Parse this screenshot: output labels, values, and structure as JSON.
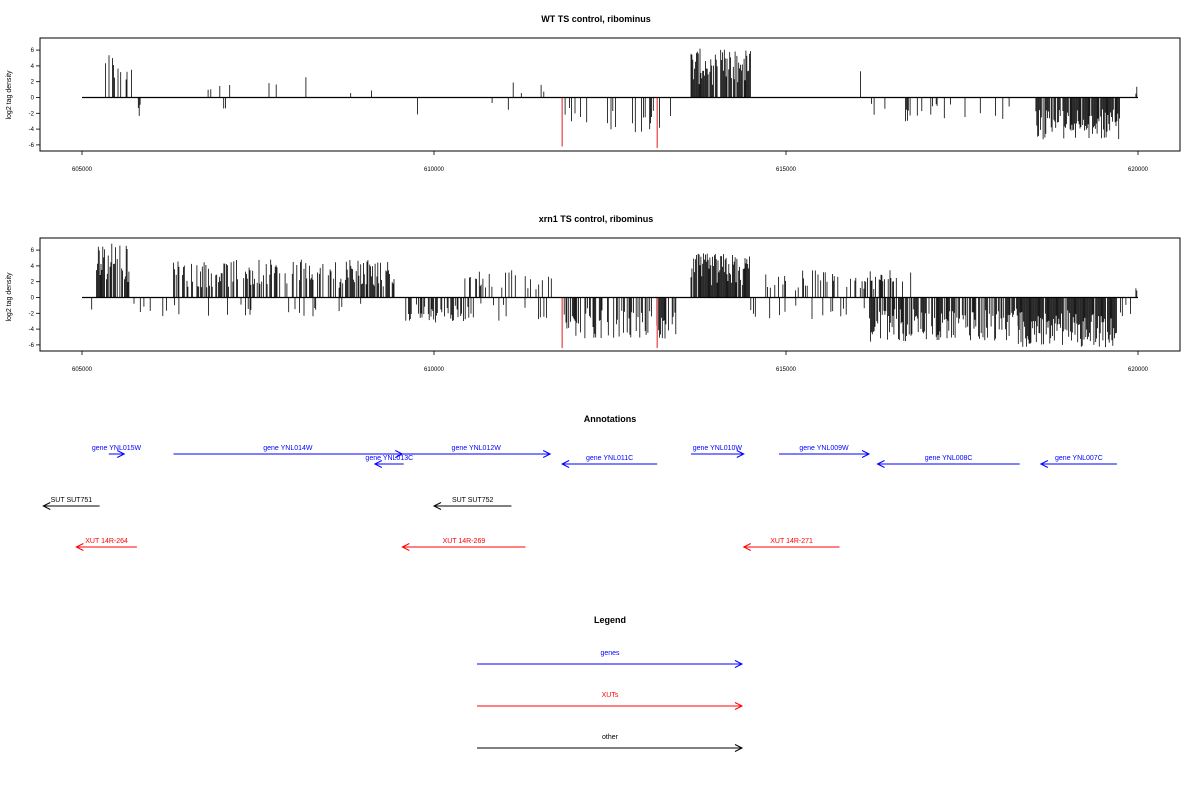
{
  "chart_data": [
    {
      "type": "bar",
      "title": "WT TS control, ribominus",
      "ylabel": "log2 tag density",
      "xlabel": "",
      "xlim": [
        605000,
        620000
      ],
      "ylim": [
        -6.4,
        6.4
      ],
      "x_ticks": [
        605000,
        610000,
        615000,
        620000
      ],
      "y_ticks": [
        -6,
        -4,
        -2,
        0,
        2,
        4,
        6
      ],
      "grid": false,
      "line_color": "#000000",
      "highlight_color": "#e41a1c",
      "highlights": [
        {
          "x": 611820,
          "y": -6.2
        },
        {
          "x": 613170,
          "y": -6.4
        }
      ],
      "segments": [
        {
          "from": 605320,
          "to": 605720,
          "sign": 1,
          "max": 5.8,
          "density": 0.35
        },
        {
          "from": 605800,
          "to": 605830,
          "sign": -1,
          "max": 2.6,
          "density": 1
        },
        {
          "from": 606650,
          "to": 607100,
          "sign": 1,
          "max": 2.1,
          "density": 0.04
        },
        {
          "from": 607000,
          "to": 607050,
          "sign": -1,
          "max": 1.6,
          "density": 0.5
        },
        {
          "from": 607400,
          "to": 608400,
          "sign": 1,
          "max": 3.5,
          "density": 0.05
        },
        {
          "from": 608600,
          "to": 609200,
          "sign": 1,
          "max": 1.5,
          "density": 0.04
        },
        {
          "from": 609600,
          "to": 610100,
          "sign": -1,
          "max": 2.8,
          "density": 0.04
        },
        {
          "from": 610250,
          "to": 610850,
          "sign": 1,
          "max": 1.4,
          "density": 0.03
        },
        {
          "from": 610800,
          "to": 611100,
          "sign": -1,
          "max": 2.0,
          "density": 0.05
        },
        {
          "from": 611100,
          "to": 611650,
          "sign": 1,
          "max": 2.0,
          "density": 0.07
        },
        {
          "from": 611850,
          "to": 613450,
          "sign": -1,
          "max": 4.5,
          "density": 0.14
        },
        {
          "from": 613650,
          "to": 614500,
          "sign": 1,
          "max": 6.2,
          "density": 0.9
        },
        {
          "from": 614900,
          "to": 615050,
          "sign": -1,
          "max": 2.6,
          "density": 0.06
        },
        {
          "from": 615880,
          "to": 616200,
          "sign": 1,
          "max": 3.4,
          "density": 0.12
        },
        {
          "from": 616200,
          "to": 618300,
          "sign": -1,
          "max": 3.2,
          "density": 0.1
        },
        {
          "from": 618550,
          "to": 619750,
          "sign": -1,
          "max": 5.4,
          "density": 0.9
        },
        {
          "from": 619970,
          "to": 619990,
          "sign": 1,
          "max": 1.5,
          "density": 1
        }
      ]
    },
    {
      "type": "bar",
      "title": "xrn1 TS control, ribominus",
      "ylabel": "log2 tag density",
      "xlabel": "",
      "xlim": [
        605000,
        620000
      ],
      "ylim": [
        -6.4,
        6.4
      ],
      "x_ticks": [
        605000,
        610000,
        615000,
        620000
      ],
      "y_ticks": [
        -6,
        -4,
        -2,
        0,
        2,
        4,
        6
      ],
      "grid": false,
      "line_color": "#000000",
      "highlight_color": "#e41a1c",
      "highlights": [
        {
          "x": 611820,
          "y": -6.4
        },
        {
          "x": 613170,
          "y": -6.4
        }
      ],
      "segments": [
        {
          "from": 605100,
          "to": 605250,
          "sign": -1,
          "max": 2.4,
          "density": 0.1
        },
        {
          "from": 605180,
          "to": 605700,
          "sign": 1,
          "max": 7.0,
          "density": 0.75
        },
        {
          "from": 605700,
          "to": 606200,
          "sign": -1,
          "max": 2.5,
          "density": 0.08
        },
        {
          "from": 606300,
          "to": 609450,
          "sign": 1,
          "max": 4.8,
          "density": 0.55
        },
        {
          "from": 606300,
          "to": 609600,
          "sign": -1,
          "max": 2.4,
          "density": 0.05
        },
        {
          "from": 609600,
          "to": 610600,
          "sign": -1,
          "max": 3.2,
          "density": 0.45
        },
        {
          "from": 610350,
          "to": 611750,
          "sign": 1,
          "max": 3.5,
          "density": 0.2
        },
        {
          "from": 610500,
          "to": 611750,
          "sign": -1,
          "max": 3.0,
          "density": 0.1
        },
        {
          "from": 611850,
          "to": 613450,
          "sign": -1,
          "max": 5.2,
          "density": 0.55
        },
        {
          "from": 613650,
          "to": 614500,
          "sign": 1,
          "max": 5.6,
          "density": 0.9
        },
        {
          "from": 614500,
          "to": 616200,
          "sign": -1,
          "max": 2.8,
          "density": 0.12
        },
        {
          "from": 614700,
          "to": 616800,
          "sign": 1,
          "max": 3.5,
          "density": 0.35
        },
        {
          "from": 616200,
          "to": 618300,
          "sign": -1,
          "max": 5.6,
          "density": 0.7
        },
        {
          "from": 618300,
          "to": 619700,
          "sign": -1,
          "max": 6.4,
          "density": 0.95
        },
        {
          "from": 619700,
          "to": 619900,
          "sign": -1,
          "max": 2.4,
          "density": 0.3
        },
        {
          "from": 619970,
          "to": 619990,
          "sign": 1,
          "max": 1.8,
          "density": 1
        }
      ]
    }
  ],
  "annotations": {
    "title": "Annotations",
    "xlim": [
      605000,
      620000
    ],
    "gene_color": "#0000ff",
    "xut_color": "#ff0000",
    "other_color": "#000000",
    "features": [
      {
        "label": "gene YNL015W",
        "kind": "gene",
        "start": 605380,
        "end": 605600,
        "strand": "+",
        "row": 0
      },
      {
        "label": "gene YNL014W",
        "kind": "gene",
        "start": 606300,
        "end": 609550,
        "strand": "+",
        "row": 0
      },
      {
        "label": "gene YNL013C",
        "kind": "gene",
        "start": 609160,
        "end": 609570,
        "strand": "-",
        "row": 1
      },
      {
        "label": "gene YNL012W",
        "kind": "gene",
        "start": 609550,
        "end": 611650,
        "strand": "+",
        "row": 0
      },
      {
        "label": "gene YNL011C",
        "kind": "gene",
        "start": 611820,
        "end": 613170,
        "strand": "-",
        "row": 1
      },
      {
        "label": "gene YNL010W",
        "kind": "gene",
        "start": 613650,
        "end": 614400,
        "strand": "+",
        "row": 0
      },
      {
        "label": "gene YNL009W",
        "kind": "gene",
        "start": 614900,
        "end": 616180,
        "strand": "+",
        "row": 0
      },
      {
        "label": "gene YNL008C",
        "kind": "gene",
        "start": 616300,
        "end": 618320,
        "strand": "-",
        "row": 1
      },
      {
        "label": "gene YNL007C",
        "kind": "gene",
        "start": 618620,
        "end": 619700,
        "strand": "-",
        "row": 1
      },
      {
        "label": "SUT SUT751",
        "kind": "other",
        "start": 604450,
        "end": 605250,
        "strand": "-",
        "row": 2
      },
      {
        "label": "SUT SUT752",
        "kind": "other",
        "start": 610000,
        "end": 611100,
        "strand": "-",
        "row": 2
      },
      {
        "label": "XUT 14R-264",
        "kind": "xut",
        "start": 604920,
        "end": 605780,
        "strand": "-",
        "row": 3
      },
      {
        "label": "XUT 14R-269",
        "kind": "xut",
        "start": 609550,
        "end": 611300,
        "strand": "-",
        "row": 3
      },
      {
        "label": "XUT 14R-271",
        "kind": "xut",
        "start": 614400,
        "end": 615760,
        "strand": "-",
        "row": 3
      }
    ]
  },
  "legend": {
    "title": "Legend",
    "items": [
      {
        "label": "genes",
        "color": "#0000ff"
      },
      {
        "label": "XUTs",
        "color": "#ff0000"
      },
      {
        "label": "other",
        "color": "#000000"
      }
    ]
  }
}
